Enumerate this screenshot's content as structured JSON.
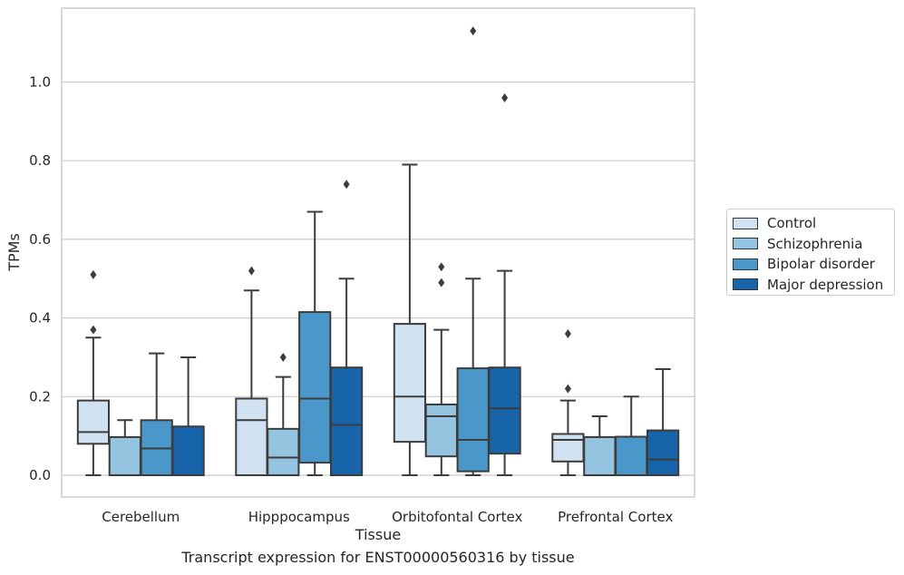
{
  "chart_data": {
    "type": "box",
    "caption": "Transcript expression for ENST00000560316 by tissue",
    "xlabel": "Tissue",
    "ylabel": "TPMs",
    "ylim": [
      -0.055,
      1.18
    ],
    "yticks": [
      0.0,
      0.2,
      0.4,
      0.6,
      0.8,
      1.0
    ],
    "ytick_labels": [
      "0.0",
      "0.2",
      "0.4",
      "0.6",
      "0.8",
      "1.0"
    ],
    "grid": "horizontal",
    "legend_position": "right-center",
    "categories": [
      "Cerebellum",
      "Hipppocampus",
      "Orbitofontal Cortex",
      "Prefrontal Cortex"
    ],
    "series": [
      {
        "name": "Control",
        "color": "#d0e1f2",
        "boxes": [
          {
            "whislo": 0.0,
            "q1": 0.08,
            "med": 0.11,
            "q3": 0.19,
            "whishi": 0.35,
            "fliers": [
              0.37,
              0.51
            ]
          },
          {
            "whislo": 0.0,
            "q1": 0.0,
            "med": 0.14,
            "q3": 0.195,
            "whishi": 0.47,
            "fliers": [
              0.52
            ]
          },
          {
            "whislo": 0.0,
            "q1": 0.085,
            "med": 0.2,
            "q3": 0.385,
            "whishi": 0.79,
            "fliers": []
          },
          {
            "whislo": 0.0,
            "q1": 0.035,
            "med": 0.09,
            "q3": 0.105,
            "whishi": 0.19,
            "fliers": [
              0.22,
              0.36
            ]
          }
        ]
      },
      {
        "name": "Schizophrenia",
        "color": "#94c4df",
        "boxes": [
          {
            "whislo": 0.0,
            "q1": 0.0,
            "med": 0.0,
            "q3": 0.097,
            "whishi": 0.14,
            "fliers": []
          },
          {
            "whislo": 0.0,
            "q1": 0.0,
            "med": 0.045,
            "q3": 0.118,
            "whishi": 0.25,
            "fliers": [
              0.3
            ]
          },
          {
            "whislo": 0.0,
            "q1": 0.048,
            "med": 0.15,
            "q3": 0.18,
            "whishi": 0.37,
            "fliers": [
              0.49,
              0.53
            ]
          },
          {
            "whislo": 0.0,
            "q1": 0.0,
            "med": 0.0,
            "q3": 0.097,
            "whishi": 0.15,
            "fliers": []
          }
        ]
      },
      {
        "name": "Bipolar disorder",
        "color": "#4a98c9",
        "boxes": [
          {
            "whislo": 0.0,
            "q1": 0.0,
            "med": 0.068,
            "q3": 0.14,
            "whishi": 0.31,
            "fliers": []
          },
          {
            "whislo": 0.0,
            "q1": 0.032,
            "med": 0.195,
            "q3": 0.415,
            "whishi": 0.67,
            "fliers": []
          },
          {
            "whislo": 0.0,
            "q1": 0.01,
            "med": 0.09,
            "q3": 0.272,
            "whishi": 0.5,
            "fliers": [
              1.13
            ]
          },
          {
            "whislo": 0.0,
            "q1": 0.0,
            "med": 0.0,
            "q3": 0.098,
            "whishi": 0.2,
            "fliers": []
          }
        ]
      },
      {
        "name": "Major depression",
        "color": "#1764ab",
        "boxes": [
          {
            "whislo": 0.0,
            "q1": 0.0,
            "med": 0.0,
            "q3": 0.124,
            "whishi": 0.3,
            "fliers": []
          },
          {
            "whislo": 0.0,
            "q1": 0.0,
            "med": 0.128,
            "q3": 0.274,
            "whishi": 0.5,
            "fliers": [
              0.74
            ]
          },
          {
            "whislo": 0.0,
            "q1": 0.055,
            "med": 0.17,
            "q3": 0.274,
            "whishi": 0.52,
            "fliers": [
              0.96
            ]
          },
          {
            "whislo": 0.0,
            "q1": 0.0,
            "med": 0.04,
            "q3": 0.114,
            "whishi": 0.27,
            "fliers": []
          }
        ]
      }
    ]
  }
}
